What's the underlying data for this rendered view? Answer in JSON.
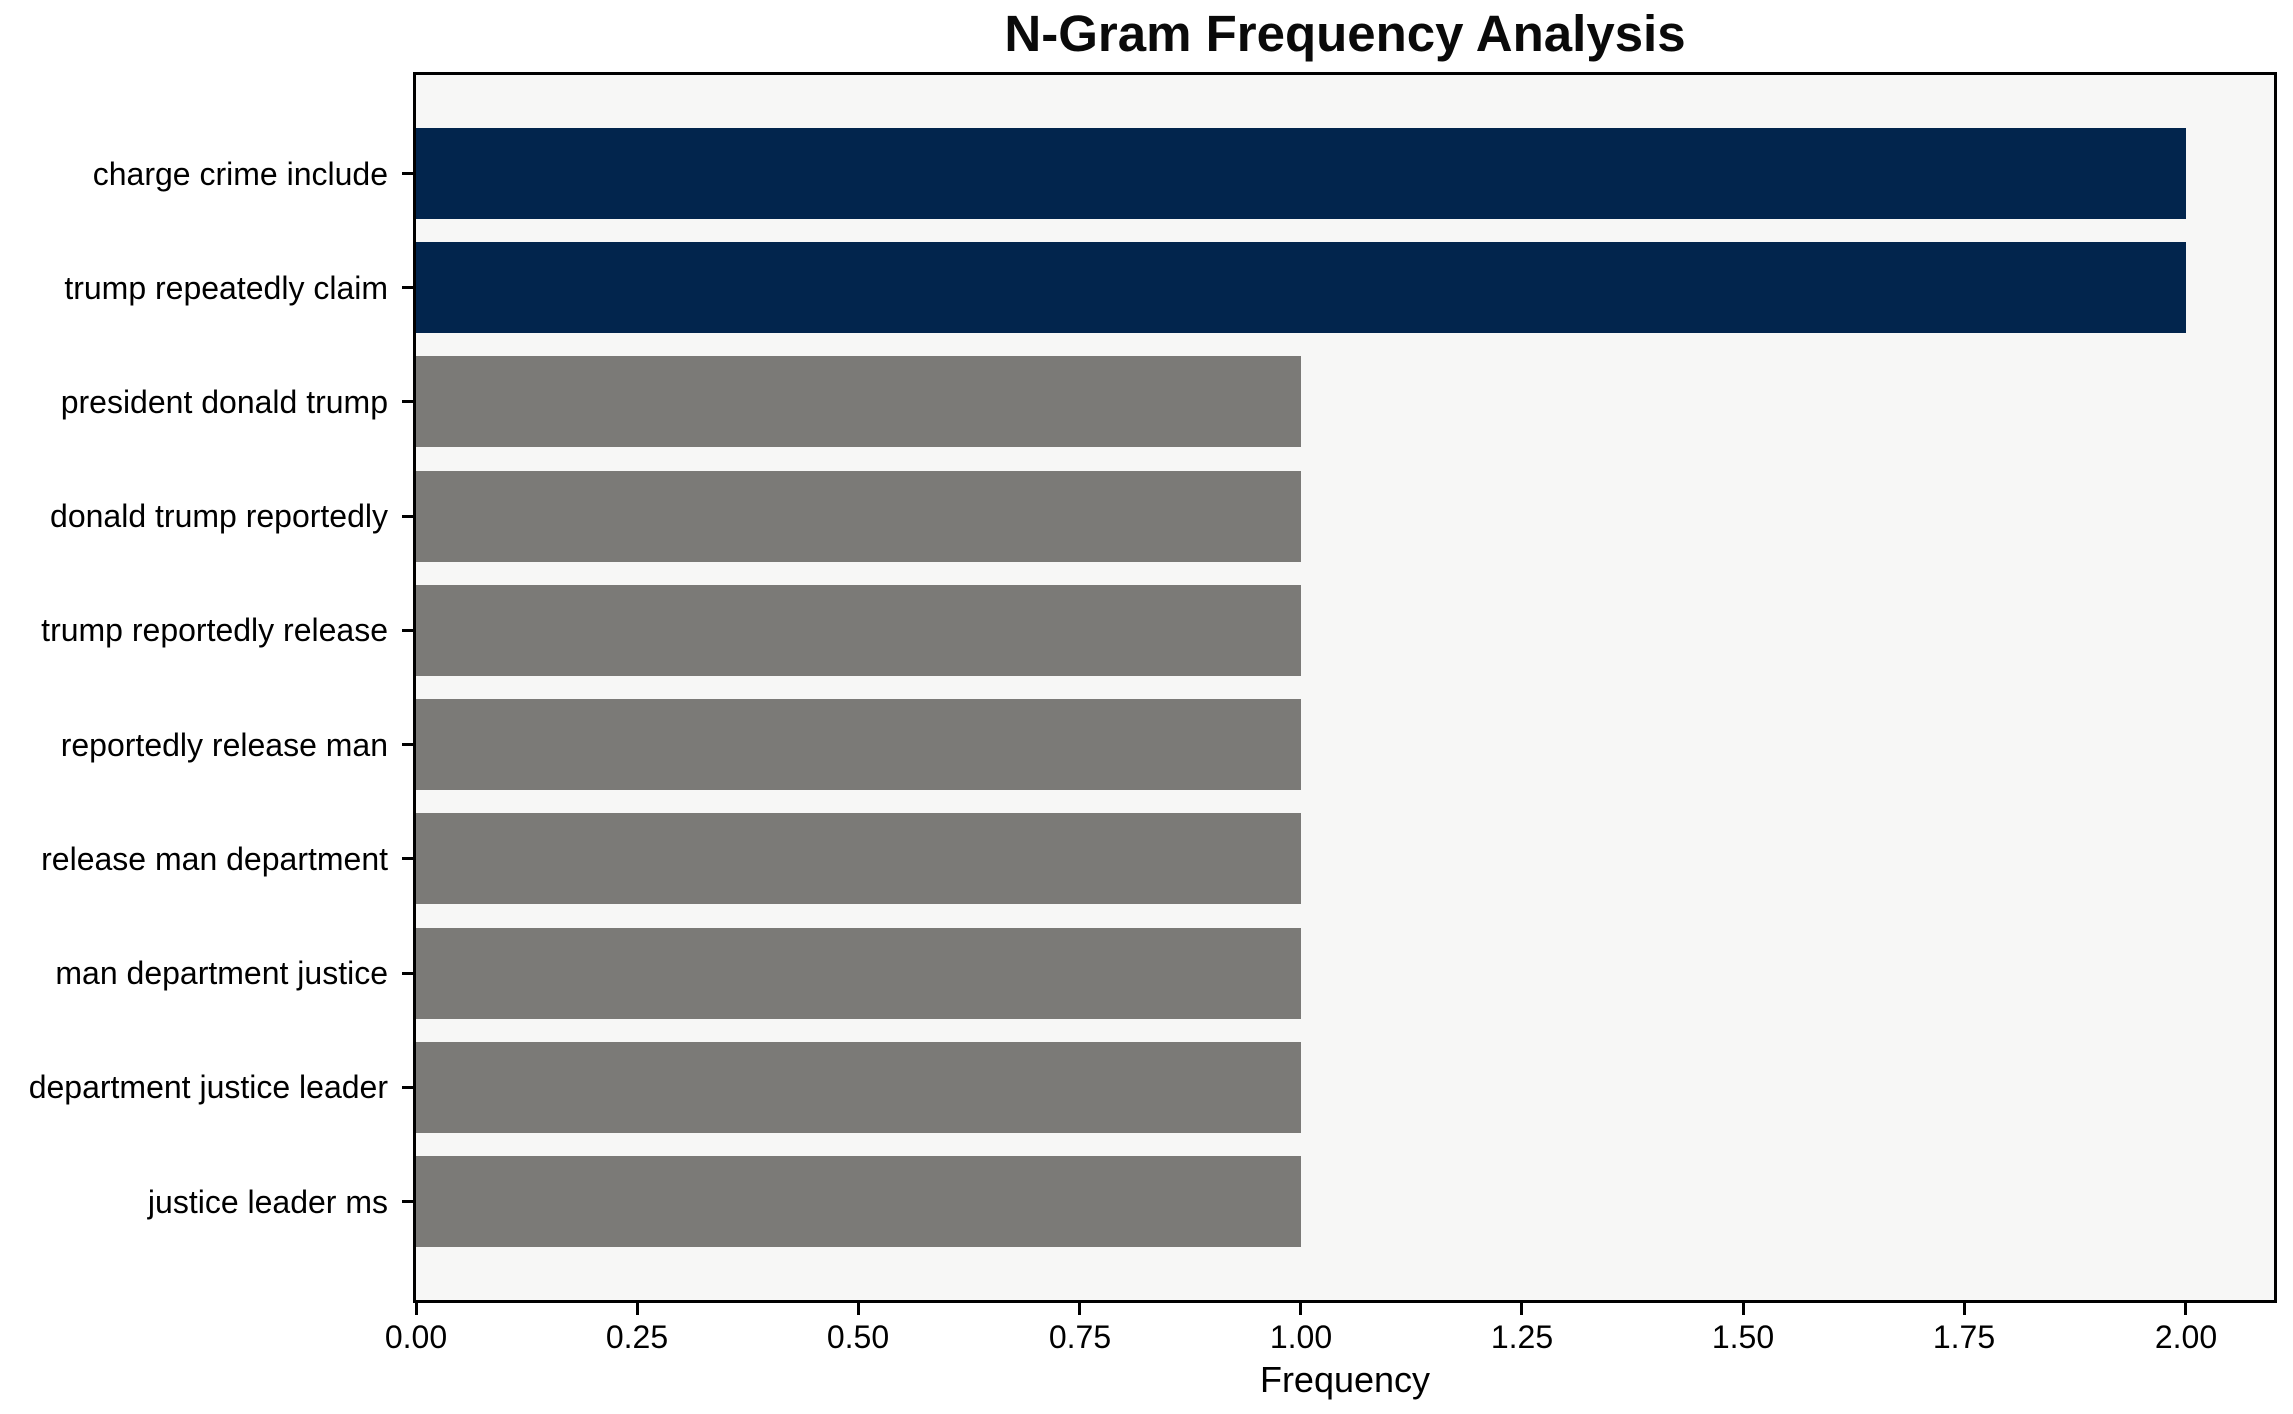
{
  "chart_data": {
    "type": "bar",
    "orientation": "horizontal",
    "title": "N-Gram Frequency Analysis",
    "xlabel": "Frequency",
    "ylabel": "",
    "categories": [
      "charge crime include",
      "trump repeatedly claim",
      "president donald trump",
      "donald trump reportedly",
      "trump reportedly release",
      "reportedly release man",
      "release man department",
      "man department justice",
      "department justice leader",
      "justice leader ms"
    ],
    "values": [
      2,
      2,
      1,
      1,
      1,
      1,
      1,
      1,
      1,
      1
    ],
    "bar_colors": [
      "#02254d",
      "#02254d",
      "#7b7a77",
      "#7b7a77",
      "#7b7a77",
      "#7b7a77",
      "#7b7a77",
      "#7b7a77",
      "#7b7a77",
      "#7b7a77"
    ],
    "xlim": [
      0,
      2.1
    ],
    "xticks": [
      0.0,
      0.25,
      0.5,
      0.75,
      1.0,
      1.25,
      1.5,
      1.75,
      2.0
    ],
    "xtick_labels": [
      "0.00",
      "0.25",
      "0.50",
      "0.75",
      "1.00",
      "1.25",
      "1.50",
      "1.75",
      "2.00"
    ],
    "grid": false,
    "legend": "none",
    "colors": {
      "highlight_bar": "#02254d",
      "default_bar": "#7b7a77",
      "plot_background": "#f7f7f6",
      "figure_background": "#ffffff",
      "spine": "#000000",
      "text": "#000000"
    }
  }
}
